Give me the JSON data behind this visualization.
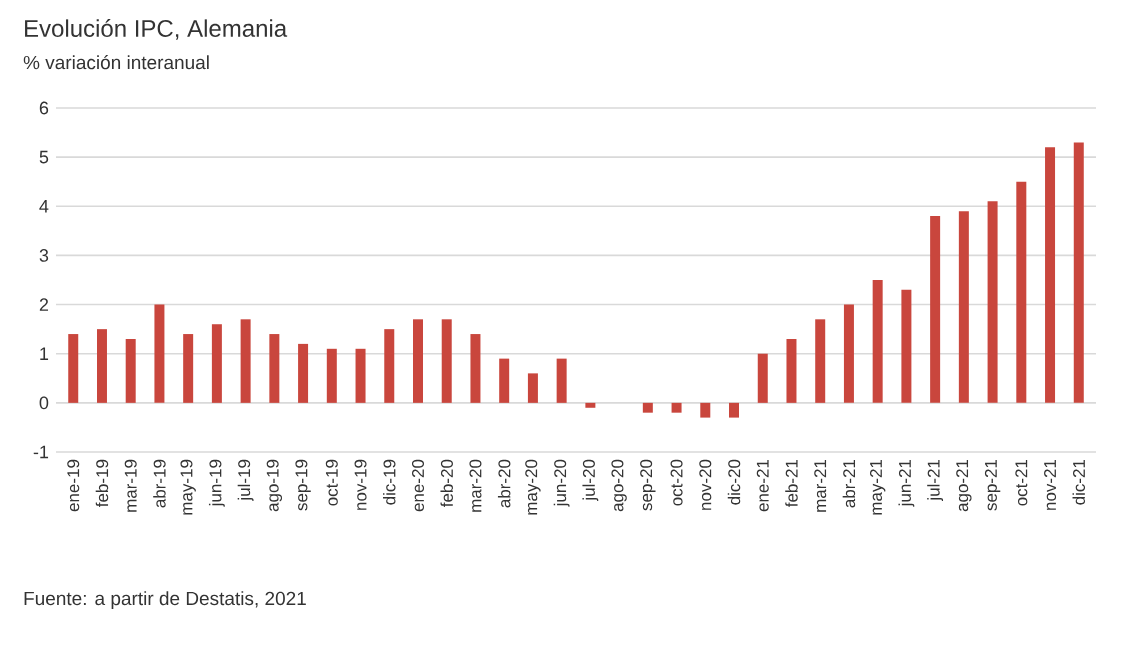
{
  "chart_data": {
    "type": "bar",
    "title": "Evolución IPC, Alemania",
    "subtitle": "% variación interanual",
    "categories": [
      "ene-19",
      "feb-19",
      "mar-19",
      "abr-19",
      "may-19",
      "jun-19",
      "jul-19",
      "ago-19",
      "sep-19",
      "oct-19",
      "nov-19",
      "dic-19",
      "ene-20",
      "feb-20",
      "mar-20",
      "abr-20",
      "may-20",
      "jun-20",
      "jul-20",
      "ago-20",
      "sep-20",
      "oct-20",
      "nov-20",
      "dic-20",
      "ene-21",
      "feb-21",
      "mar-21",
      "abr-21",
      "may-21",
      "jun-21",
      "jul-21",
      "ago-21",
      "sep-21",
      "oct-21",
      "nov-21",
      "dic-21"
    ],
    "values": [
      1.4,
      1.5,
      1.3,
      2.0,
      1.4,
      1.6,
      1.7,
      1.4,
      1.2,
      1.1,
      1.1,
      1.5,
      1.7,
      1.7,
      1.4,
      0.9,
      0.6,
      0.9,
      -0.1,
      0.0,
      -0.2,
      -0.2,
      -0.3,
      -0.3,
      1.0,
      1.3,
      1.7,
      2.0,
      2.5,
      2.3,
      3.8,
      3.9,
      4.1,
      4.5,
      5.2,
      5.3
    ],
    "color": "#c9463d",
    "ylim": [
      -1,
      6
    ],
    "yticks": [
      -1,
      0,
      1,
      2,
      3,
      4,
      5,
      6
    ],
    "grid": "y",
    "annotations": [
      "Fuente: a partir de Destatis, 2021"
    ]
  }
}
